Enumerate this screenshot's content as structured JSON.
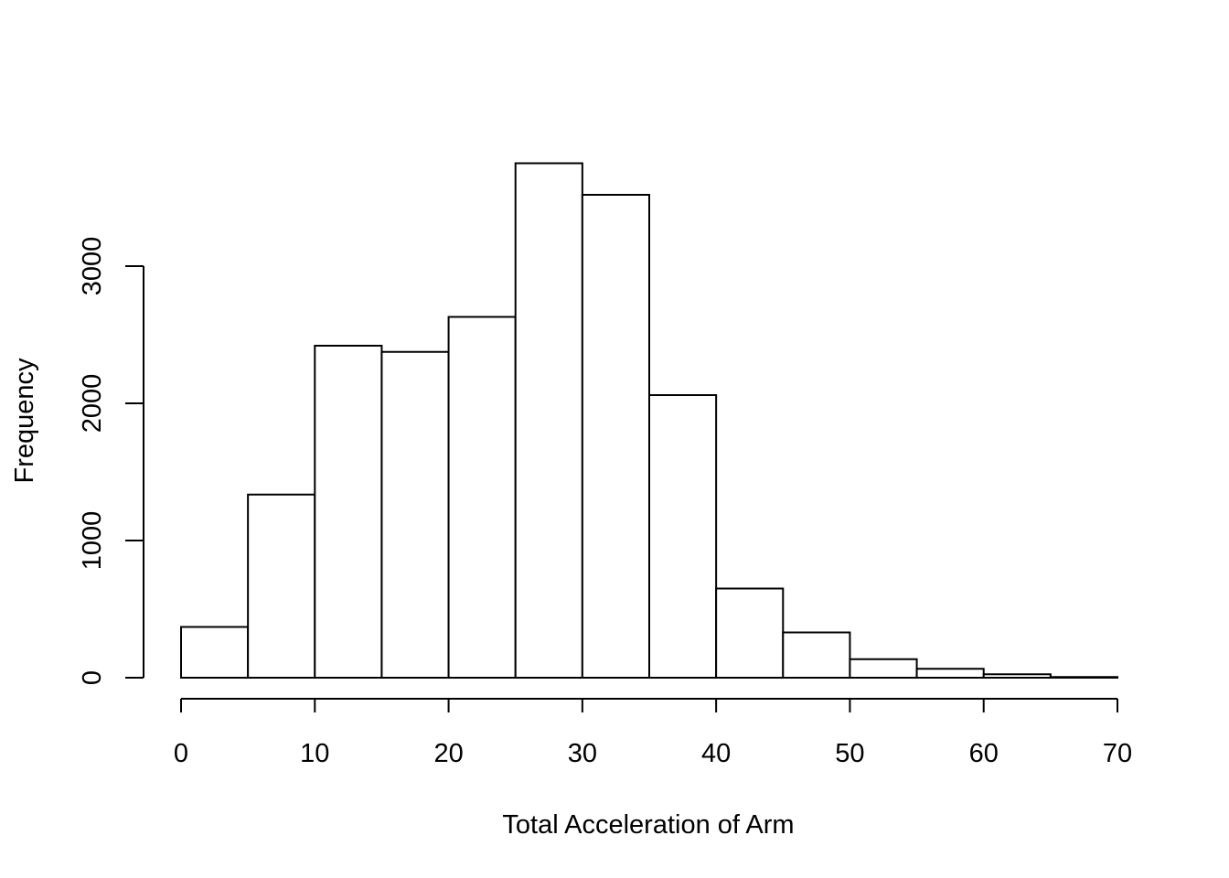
{
  "chart_data": {
    "type": "bar",
    "subtype": "histogram",
    "title": "",
    "xlabel": "Total Acceleration of Arm",
    "ylabel": "Frequency",
    "bin_width": 5,
    "bins": [
      {
        "start": 0,
        "end": 5,
        "count": 370
      },
      {
        "start": 5,
        "end": 10,
        "count": 1335
      },
      {
        "start": 10,
        "end": 15,
        "count": 2420
      },
      {
        "start": 15,
        "end": 20,
        "count": 2375
      },
      {
        "start": 20,
        "end": 25,
        "count": 2630
      },
      {
        "start": 25,
        "end": 30,
        "count": 3750
      },
      {
        "start": 30,
        "end": 35,
        "count": 3520
      },
      {
        "start": 35,
        "end": 40,
        "count": 2060
      },
      {
        "start": 40,
        "end": 45,
        "count": 650
      },
      {
        "start": 45,
        "end": 50,
        "count": 330
      },
      {
        "start": 50,
        "end": 55,
        "count": 135
      },
      {
        "start": 55,
        "end": 60,
        "count": 65
      },
      {
        "start": 60,
        "end": 65,
        "count": 25
      },
      {
        "start": 65,
        "end": 70,
        "count": 5
      }
    ],
    "xlim": [
      0,
      70
    ],
    "ylim": [
      0,
      3750
    ],
    "x_ticks": [
      "0",
      "10",
      "20",
      "30",
      "40",
      "50",
      "60",
      "70"
    ],
    "y_ticks": [
      "0",
      "1000",
      "2000",
      "3000"
    ],
    "bar_fill": "#ffffff",
    "bar_stroke": "#000000",
    "grid": false,
    "legend": "none"
  }
}
